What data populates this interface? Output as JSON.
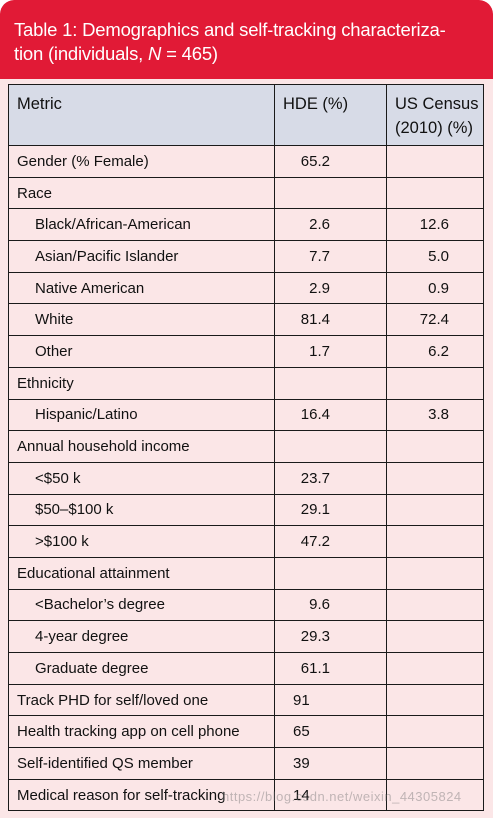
{
  "title": {
    "line1": "Table 1: Demographics and self-tracking characteriza-",
    "line2_prefix": "tion (individuals, ",
    "line2_var": "N",
    "line2_suffix": " = 465)"
  },
  "header": {
    "metric": "Metric",
    "hde": "HDE (%)",
    "census_line1": "US Census",
    "census_line2": "(2010) (%)"
  },
  "rows": [
    {
      "label": "Gender (% Female)",
      "hde": "65.2",
      "census": ""
    },
    {
      "label": "Race",
      "hde": "",
      "census": ""
    },
    {
      "label": "Black/African-American",
      "hde": "2.6",
      "census": "12.6"
    },
    {
      "label": "Asian/Pacific Islander",
      "hde": "7.7",
      "census": "5.0"
    },
    {
      "label": "Native American",
      "hde": "2.9",
      "census": "0.9"
    },
    {
      "label": "White",
      "hde": "81.4",
      "census": "72.4"
    },
    {
      "label": "Other",
      "hde": "1.7",
      "census": "6.2"
    },
    {
      "label": "Ethnicity",
      "hde": "",
      "census": ""
    },
    {
      "label": "Hispanic/Latino",
      "hde": "16.4",
      "census": "3.8"
    },
    {
      "label": "Annual household income",
      "hde": "",
      "census": ""
    },
    {
      "label": "<$50 k",
      "hde": "23.7",
      "census": ""
    },
    {
      "label": "$50–$100 k",
      "hde": "29.1",
      "census": ""
    },
    {
      "label": ">$100 k",
      "hde": "47.2",
      "census": ""
    },
    {
      "label": "Educational attainment",
      "hde": "",
      "census": ""
    },
    {
      "label": "<Bachelor’s degree",
      "hde": "9.6",
      "census": ""
    },
    {
      "label": "4-year degree",
      "hde": "29.3",
      "census": ""
    },
    {
      "label": "Graduate degree",
      "hde": "61.1",
      "census": ""
    },
    {
      "label": "Track PHD for self/loved one",
      "hde": "91",
      "census": ""
    },
    {
      "label": "Health tracking app on cell phone",
      "hde": "65",
      "census": ""
    },
    {
      "label": "Self-identified QS member",
      "hde": "39",
      "census": ""
    },
    {
      "label": "Medical reason for self-tracking",
      "hde": "14",
      "census": ""
    }
  ],
  "watermark": "https://blog.csdn.net/weixin_44305824"
}
